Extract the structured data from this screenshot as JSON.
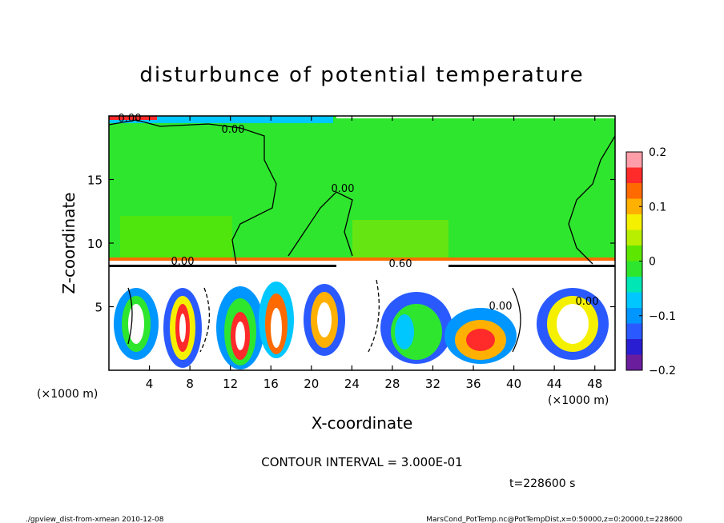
{
  "chart_data": {
    "type": "heatmap",
    "title": "disturbunce of potential temperature",
    "xlabel": "X-coordinate",
    "ylabel": "Z-coordinate",
    "x_unit": "(×1000 m)",
    "x_unit_right": "(×1000 m)",
    "xlim": [
      0,
      50
    ],
    "ylim": [
      0,
      20
    ],
    "x_ticks": [
      "4",
      "8",
      "12",
      "16",
      "20",
      "24",
      "28",
      "32",
      "36",
      "40",
      "44",
      "48"
    ],
    "y_ticks": [
      "5",
      "10",
      "15"
    ],
    "colorbar": {
      "range": [
        -0.2,
        0.2
      ],
      "tick_labels": [
        "0.2",
        "0.1",
        "0",
        "−0.1",
        "−0.2"
      ]
    },
    "contour_interval_text": "CONTOUR INTERVAL = 3.000E-01",
    "contour_labels": [
      "0.00",
      "0.00",
      "0.00",
      "0.60",
      "0.00",
      "0.00",
      "0.00"
    ],
    "time_text": "t=228600 s",
    "footer_left": "./gpview_dist-from-xmean  2010-12-08",
    "footer_right": "MarsCond_PotTemp.nc@PotTempDist,x=0:50000,z=0:20000,t=228600"
  },
  "colors": {
    "background_field": "#2ee62e",
    "colorbar": [
      "#ff9ea8",
      "#ff2a2a",
      "#ff6a00",
      "#ffb000",
      "#f5f000",
      "#b8ee00",
      "#5ce600",
      "#2ee62e",
      "#00e6b4",
      "#00c8ff",
      "#0096ff",
      "#2a5aff",
      "#2a1ed2",
      "#6a1e9e"
    ]
  }
}
